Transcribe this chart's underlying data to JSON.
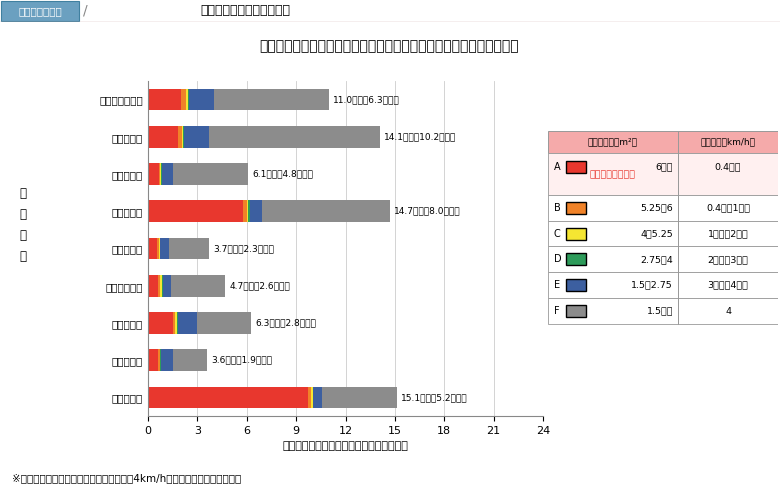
{
  "title": "丸の内を基点とした帰宅地別平均所要時間とその混雑度ランク別内訳",
  "header_box_text": "図２－３－４５",
  "header_text": "一斉帰宅による混雑の発生",
  "xlabel": "平均所要時間（丸の内を起点）　［時間］",
  "ylabel_box": "到\n着\n地\n点",
  "footnote": "※図中の（　）内の数値は，平常時に時速4km/hで歩行した場合の所要時間",
  "categories": [
    "さいたま市役所",
    "千葉市役所",
    "川崎市役所",
    "横浜市役所",
    "目黒区役所",
    "江戸川区役所",
    "葛飾区役所",
    "新宿区役所",
    "和光市役所"
  ],
  "bar_labels": [
    "11.0時間（6.3時間）",
    "14.1時間（10.2時間）",
    "6.1時間（4.8時間）",
    "14.7時間（8.0時間）",
    "3.7時間（2.3時間）",
    "4.7時間（2.6時間）",
    "6.3時間（2.8時間）",
    "3.6時間（1.9時間）",
    "15.1時間（5.2時間）"
  ],
  "bar_data": {
    "A": [
      2.0,
      1.8,
      0.65,
      5.8,
      0.55,
      0.6,
      1.5,
      0.6,
      9.7
    ],
    "B": [
      0.28,
      0.25,
      0.1,
      0.2,
      0.1,
      0.15,
      0.15,
      0.1,
      0.2
    ],
    "C": [
      0.15,
      0.1,
      0.05,
      0.1,
      0.05,
      0.1,
      0.1,
      0.05,
      0.1
    ],
    "D": [
      0.07,
      0.05,
      0.05,
      0.1,
      0.05,
      0.05,
      0.05,
      0.05,
      0.05
    ],
    "E": [
      1.5,
      1.5,
      0.65,
      0.7,
      0.5,
      0.5,
      1.2,
      0.7,
      0.55
    ],
    "F": [
      7.0,
      10.4,
      4.6,
      7.8,
      2.45,
      3.3,
      3.25,
      2.1,
      4.5
    ]
  },
  "colors": {
    "A": "#E8372E",
    "B": "#F08228",
    "C": "#F5E632",
    "D": "#2D9B5A",
    "E": "#3C5FA0",
    "F": "#8C8C8C"
  },
  "xlim": [
    0,
    24
  ],
  "xticks": [
    0,
    3,
    6,
    9,
    12,
    15,
    18,
    21,
    24
  ],
  "legend_rows": [
    {
      "rank": "A",
      "color": "#E8372E",
      "density": "6以上",
      "speed": "0.4以下",
      "note": "（満員電車状態）"
    },
    {
      "rank": "B",
      "color": "#F08228",
      "density": "5.25～6",
      "speed": "0.4超～1未満",
      "note": ""
    },
    {
      "rank": "C",
      "color": "#F5E632",
      "density": "4～5.25",
      "speed": "1以上～2未満",
      "note": ""
    },
    {
      "rank": "D",
      "color": "#2D9B5A",
      "density": "2.75～4",
      "speed": "2以上～3未満",
      "note": ""
    },
    {
      "rank": "E",
      "color": "#3C5FA0",
      "density": "1.5～2.75",
      "speed": "3以上～4未満",
      "note": ""
    },
    {
      "rank": "F",
      "color": "#8C8C8C",
      "density": "1.5以下",
      "speed": "4",
      "note": ""
    }
  ],
  "header_bg": "#B8D8E8",
  "header_box_bg": "#6BA0C0",
  "title_bg": "#FAFACC",
  "title_border": "#CCCC66",
  "table_header_bg": "#F5AAAA",
  "table_border": "#999999"
}
